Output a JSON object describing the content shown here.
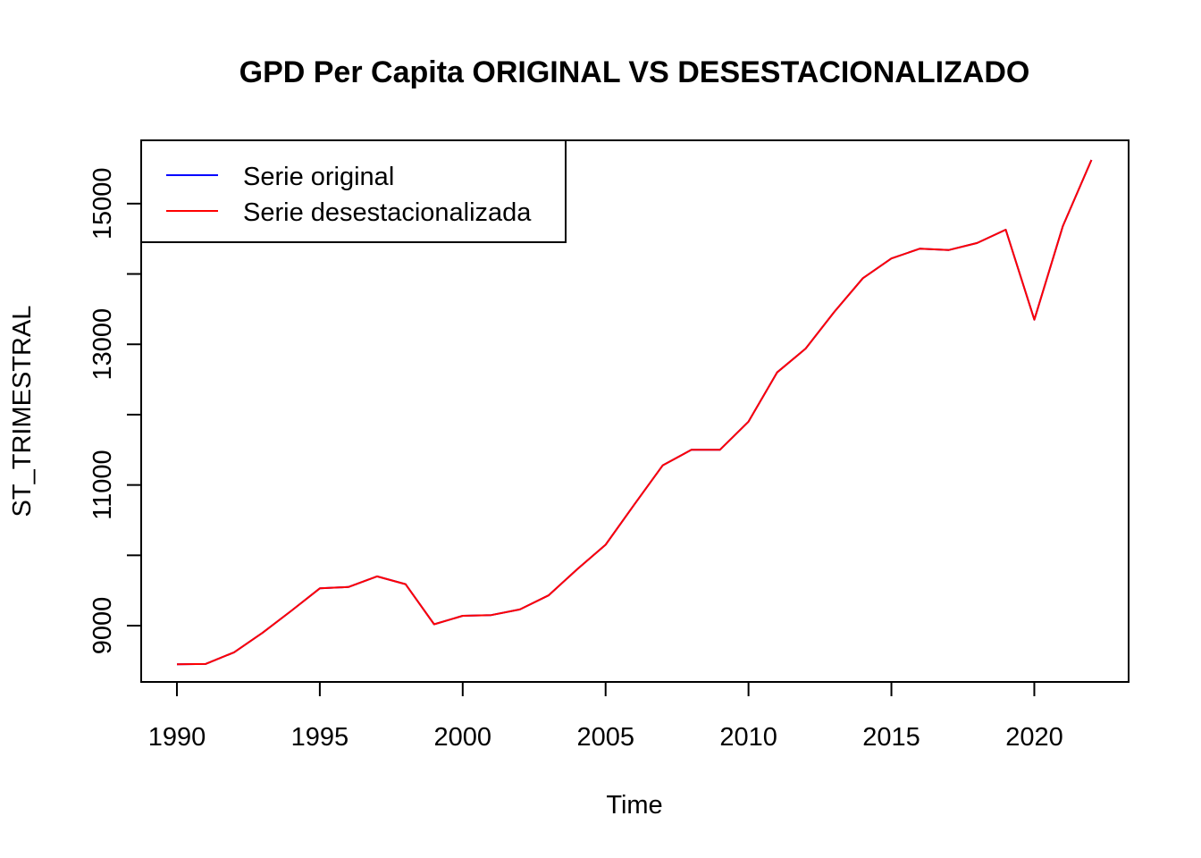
{
  "chart_data": {
    "type": "line",
    "title": "GPD Per Capita ORIGINAL VS DESESTACIONALIZADO",
    "xlabel": "Time",
    "ylabel": "ST_TRIMESTRAL",
    "xlim": [
      1988.75,
      2023.3
    ],
    "ylim": [
      8200,
      15900
    ],
    "x_ticks": [
      1990,
      1995,
      2000,
      2005,
      2010,
      2015,
      2020
    ],
    "y_ticks": [
      9000,
      11000,
      13000,
      15000
    ],
    "y_minor_ticks": [
      10000,
      12000,
      14000
    ],
    "legend_position": "top-left",
    "series": [
      {
        "name": "Serie original",
        "color": "#0000FF",
        "x": [
          1990,
          1991,
          1992,
          1993,
          1994,
          1995,
          1996,
          1997,
          1998,
          1999,
          2000,
          2001,
          2002,
          2003,
          2004,
          2005,
          2006,
          2007,
          2008,
          2009,
          2010,
          2011,
          2012,
          2013,
          2014,
          2015,
          2016,
          2017,
          2018,
          2019,
          2020,
          2021,
          2022
        ],
        "values": [
          8450,
          8455,
          8620,
          8900,
          9210,
          9530,
          9550,
          9700,
          9590,
          9020,
          9140,
          9150,
          9230,
          9430,
          9800,
          10150,
          10720,
          11280,
          11500,
          11500,
          11900,
          12600,
          12940,
          13460,
          13940,
          14220,
          14360,
          14340,
          14440,
          14630,
          13350,
          14680,
          15620
        ]
      },
      {
        "name": "Serie desestacionalizada",
        "color": "#FF0000",
        "x": [
          1990,
          1991,
          1992,
          1993,
          1994,
          1995,
          1996,
          1997,
          1998,
          1999,
          2000,
          2001,
          2002,
          2003,
          2004,
          2005,
          2006,
          2007,
          2008,
          2009,
          2010,
          2011,
          2012,
          2013,
          2014,
          2015,
          2016,
          2017,
          2018,
          2019,
          2020,
          2021,
          2022
        ],
        "values": [
          8450,
          8455,
          8620,
          8900,
          9210,
          9530,
          9550,
          9700,
          9590,
          9020,
          9140,
          9150,
          9230,
          9430,
          9800,
          10150,
          10720,
          11280,
          11500,
          11500,
          11900,
          12600,
          12940,
          13460,
          13940,
          14220,
          14360,
          14340,
          14440,
          14630,
          13350,
          14680,
          15620
        ]
      }
    ]
  }
}
